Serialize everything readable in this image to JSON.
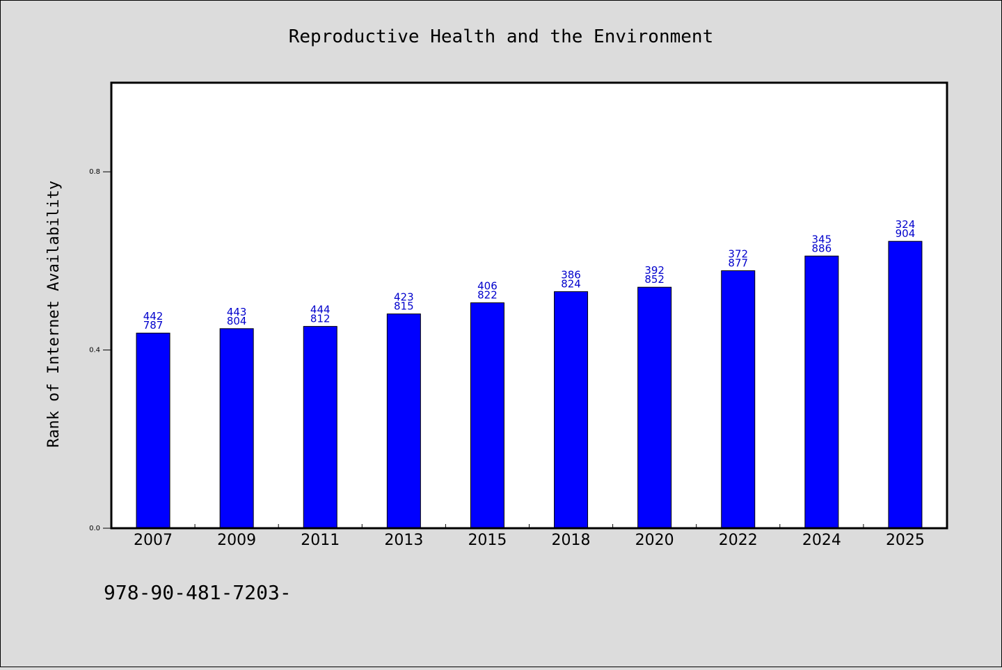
{
  "footer_text": "978-90-481-7203-",
  "colors": {
    "bar": "#0000ff",
    "data_label": "#0000cc",
    "background": "#dcdcdc",
    "plot_background": "#ffffff"
  },
  "chart_data": {
    "type": "bar",
    "title": "Reproductive Health and the Environment",
    "xlabel": "",
    "ylabel": "Rank of Internet Availability",
    "categories": [
      "2007",
      "2009",
      "2011",
      "2013",
      "2015",
      "2018",
      "2020",
      "2022",
      "2024",
      "2025"
    ],
    "values": [
      0.438,
      0.448,
      0.453,
      0.481,
      0.506,
      0.531,
      0.541,
      0.578,
      0.611,
      0.644
    ],
    "data_labels": [
      [
        "442",
        "787"
      ],
      [
        "443",
        "804"
      ],
      [
        "444",
        "812"
      ],
      [
        "423",
        "815"
      ],
      [
        "406",
        "822"
      ],
      [
        "386",
        "824"
      ],
      [
        "392",
        "852"
      ],
      [
        "372",
        "877"
      ],
      [
        "345",
        "886"
      ],
      [
        "324",
        "904"
      ]
    ],
    "ylim": [
      0,
      1.0
    ],
    "yticks": [
      0.0,
      0.4,
      0.8
    ],
    "ytick_labels": [
      "0.0",
      "0.4",
      "0.8"
    ],
    "grid": false,
    "legend": "none"
  }
}
